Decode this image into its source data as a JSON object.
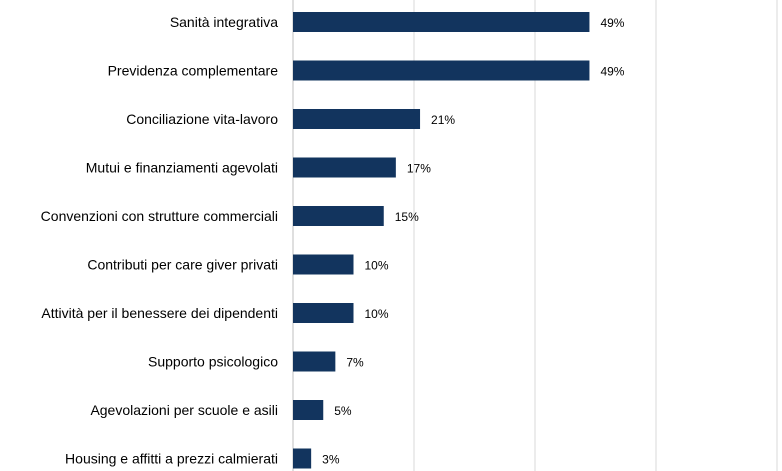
{
  "chart_data": {
    "type": "bar",
    "orientation": "horizontal",
    "title": "",
    "xlabel": "",
    "ylabel": "",
    "categories": [
      "Sanità integrativa",
      "Previdenza complementare",
      "Conciliazione vita-lavoro",
      "Mutui e finanziamenti agevolati",
      "Convenzioni con strutture commerciali",
      "Contributi per care giver privati",
      "Attività per il benessere dei dipendenti",
      "Supporto psicologico",
      "Agevolazioni per scuole e asili",
      "Housing e affitti a prezzi calmierati"
    ],
    "values": [
      49,
      49,
      21,
      17,
      15,
      10,
      10,
      7,
      5,
      3
    ],
    "value_labels": [
      "49%",
      "49%",
      "21%",
      "17%",
      "15%",
      "10%",
      "10%",
      "7%",
      "5%",
      "3%"
    ],
    "unit": "%",
    "xlim": [
      0,
      80
    ],
    "grid": "vertical",
    "legend": "none",
    "bar_color": "#12345e"
  }
}
